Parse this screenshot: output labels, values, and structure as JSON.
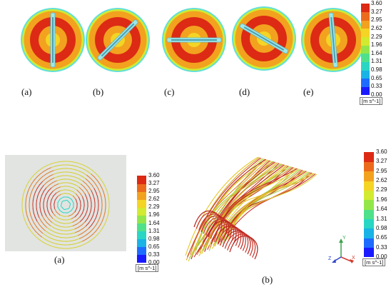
{
  "colors": {
    "scale": [
      "#1a1aff",
      "#1e6cff",
      "#19b3e6",
      "#29d6c4",
      "#4fe08a",
      "#93e64a",
      "#d2ea30",
      "#f4d424",
      "#f2a21f",
      "#ec6a1c",
      "#dc2a14"
    ],
    "outer_ring": "#62e0d8",
    "blade": "#9ee8e8"
  },
  "top_row": {
    "panels": [
      {
        "label": "(a)",
        "angle": 90
      },
      {
        "label": "(b)",
        "angle": 45
      },
      {
        "label": "(c)",
        "angle": 0
      },
      {
        "label": "(d)",
        "angle": -30
      },
      {
        "label": "(e)",
        "angle": 95
      }
    ],
    "colorbar": {
      "ticks": [
        "3.60",
        "3.27",
        "2.95",
        "2.62",
        "2.29",
        "1.96",
        "1.64",
        "1.31",
        "0.98",
        "0.65",
        "0.33",
        "0.00"
      ],
      "unit": "[m s^-1]"
    }
  },
  "bottom_row": {
    "left_panel": {
      "label": "(a)"
    },
    "right_panel": {
      "label": "(b)"
    },
    "left_colorbar": {
      "ticks": [
        "3.60",
        "3.27",
        "2.95",
        "2.62",
        "2.29",
        "1.96",
        "1.64",
        "1.31",
        "0.98",
        "0.65",
        "0.33",
        "0.00"
      ],
      "unit": "[m s^-1]"
    },
    "right_colorbar": {
      "ticks": [
        "3.60",
        "3.27",
        "2.95",
        "2.62",
        "2.29",
        "1.96",
        "1.64",
        "1.31",
        "0.98",
        "0.65",
        "0.33",
        "0.00"
      ],
      "unit": "[m s^-1]"
    },
    "axis_triad": {
      "x": "X",
      "y": "Y",
      "z": "Z"
    }
  }
}
